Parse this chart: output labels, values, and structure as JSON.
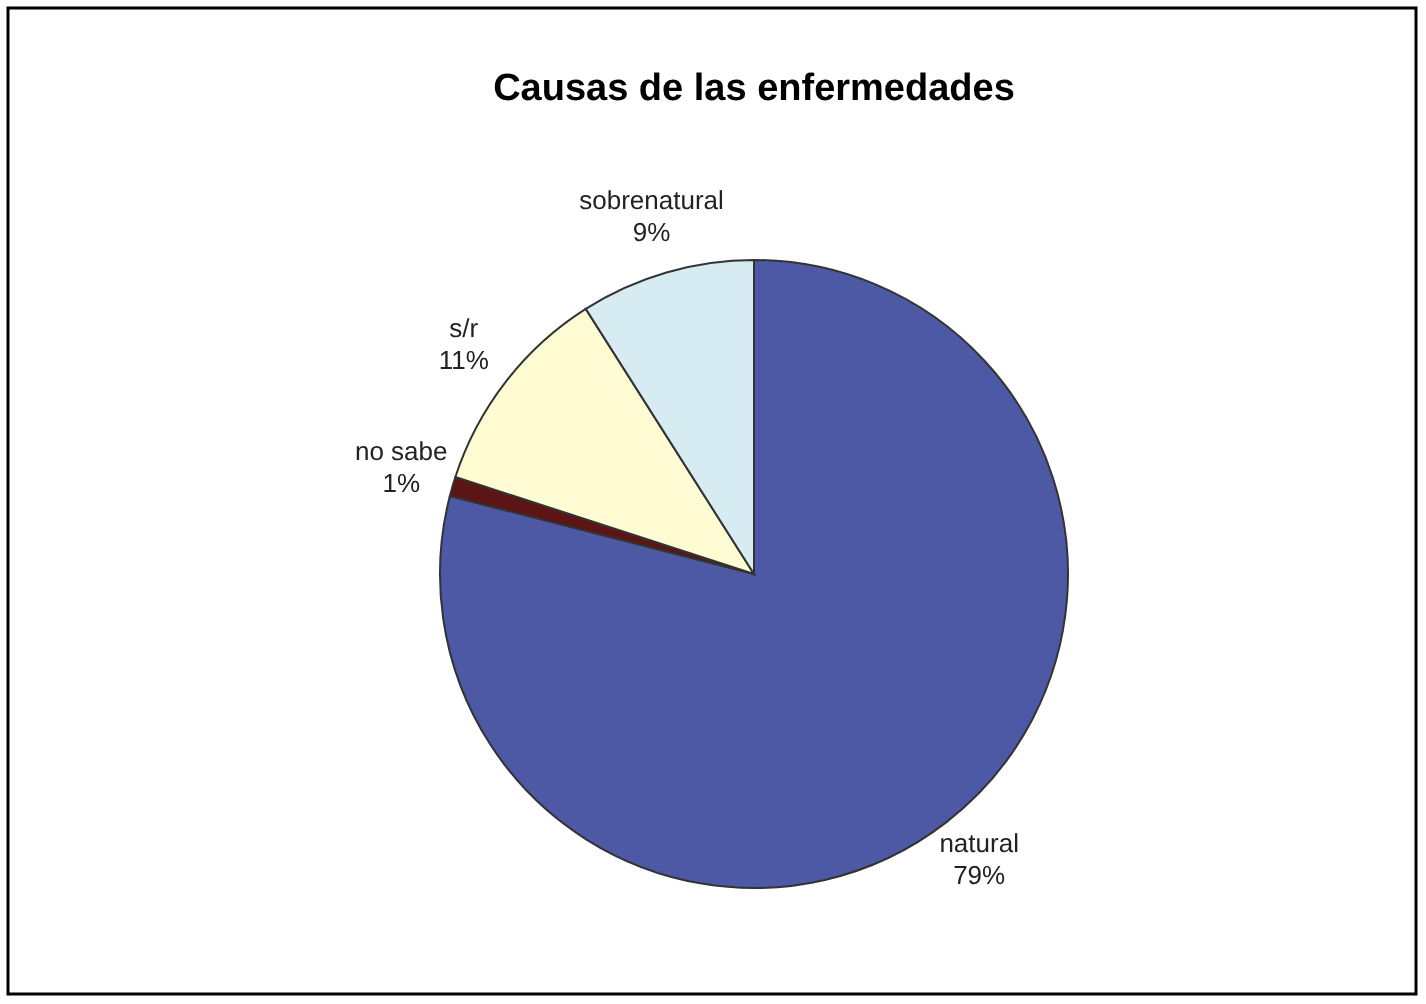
{
  "chart_data": {
    "type": "pie",
    "title": "Causas de las enfermedades",
    "categories": [
      "natural",
      "no sabe",
      "s/r",
      "sobrenatural"
    ],
    "values": [
      79,
      1,
      11,
      9
    ],
    "value_labels": [
      "79%",
      "1%",
      "11%",
      "9%"
    ],
    "colors": [
      "#4e59a6",
      "#5c1414",
      "#fffcd4",
      "#d7ebf3"
    ]
  }
}
